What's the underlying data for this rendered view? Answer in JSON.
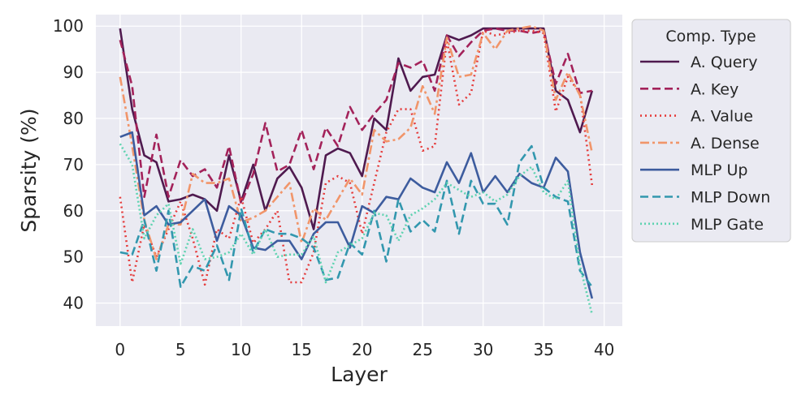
{
  "chart_data": {
    "type": "line",
    "xlabel": "Layer",
    "ylabel": "Sparsity (%)",
    "xlim": [
      -2,
      41.5
    ],
    "ylim": [
      35,
      102.5
    ],
    "xticks": [
      0,
      5,
      10,
      15,
      20,
      25,
      30,
      35,
      40
    ],
    "yticks": [
      40,
      50,
      60,
      70,
      80,
      90,
      100
    ],
    "grid": true,
    "background": "#eaeaf2",
    "legend": {
      "title": "Comp. Type",
      "placement": "outside right"
    },
    "x": [
      0,
      1,
      2,
      3,
      4,
      5,
      6,
      7,
      8,
      9,
      10,
      11,
      12,
      13,
      14,
      15,
      16,
      17,
      18,
      19,
      20,
      21,
      22,
      23,
      24,
      25,
      26,
      27,
      28,
      29,
      30,
      31,
      32,
      33,
      34,
      35,
      36,
      37,
      38,
      39
    ],
    "series": [
      {
        "name": "A. Query",
        "color": "#4f1a4f",
        "dash": "solid",
        "values": [
          99.5,
          82,
          72,
          70.5,
          62,
          62.5,
          63.5,
          62.5,
          60,
          72,
          62,
          70,
          60,
          67,
          69.5,
          65,
          56,
          72,
          73.5,
          72.5,
          67.5,
          80,
          77.5,
          93,
          86,
          89,
          89.5,
          98,
          97,
          98,
          99.5,
          99.5,
          99.5,
          99.5,
          99.5,
          99.5,
          86,
          84,
          77,
          86
        ]
      },
      {
        "name": "A. Key",
        "color": "#a3225a",
        "dash": "10,5",
        "values": [
          97,
          87,
          63,
          76.5,
          63,
          71,
          67.5,
          69,
          65,
          74,
          61.5,
          68,
          79,
          68.5,
          70,
          77.5,
          69,
          78,
          74,
          82.5,
          77.5,
          81,
          84,
          92,
          91,
          92.5,
          86,
          98,
          93.5,
          96.5,
          99,
          99.5,
          99,
          99,
          98.5,
          99,
          87.5,
          94,
          85.5,
          86
        ]
      },
      {
        "name": "A. Value",
        "color": "#e53c3c",
        "dash": "2,4",
        "values": [
          63,
          44.5,
          57,
          50,
          56,
          62,
          54,
          44,
          56,
          54,
          63,
          53,
          56,
          60,
          44.5,
          44.5,
          51,
          66,
          67.5,
          66,
          55,
          66,
          77,
          82,
          82,
          73,
          74,
          97,
          83,
          85.5,
          99,
          98,
          98.5,
          99,
          99,
          98.5,
          81.5,
          89,
          85.5,
          65.5
        ]
      },
      {
        "name": "A. Dense",
        "color": "#f1956a",
        "dash": "11,4,3,4",
        "values": [
          89,
          74,
          58,
          49.5,
          57,
          57,
          68,
          66,
          66,
          67,
          57.5,
          58.5,
          60,
          63,
          66,
          53,
          60.5,
          58,
          62.5,
          67,
          63.5,
          77.5,
          75,
          75.5,
          78,
          87,
          81,
          97.5,
          89,
          89.5,
          98.5,
          95,
          99,
          99.5,
          100,
          99,
          84,
          90,
          85,
          72.5
        ]
      },
      {
        "name": "MLP Up",
        "color": "#3d5c9e",
        "dash": "solid",
        "values": [
          76,
          77,
          59,
          61,
          57,
          57.5,
          60,
          62.5,
          53.5,
          61,
          59,
          52,
          51.5,
          53.5,
          53.5,
          49.5,
          55,
          57.5,
          57.5,
          52,
          61,
          59.5,
          63,
          62.5,
          67,
          65,
          64,
          70.5,
          66,
          72.5,
          64,
          67.5,
          64,
          68,
          66,
          65,
          71.5,
          68.5,
          51,
          41
        ]
      },
      {
        "name": "MLP Down",
        "color": "#3297ae",
        "dash": "10,5",
        "values": [
          51,
          50.5,
          58,
          47,
          60,
          43.5,
          48,
          47,
          52.5,
          45,
          60.5,
          51,
          56,
          55,
          55,
          54,
          52,
          45,
          45.5,
          53,
          50.5,
          60,
          49,
          62.5,
          55.5,
          58,
          55.5,
          66.5,
          55,
          66.5,
          61.5,
          61.5,
          57,
          70.5,
          74,
          65,
          63,
          62,
          47,
          43.5
        ]
      },
      {
        "name": "MLP Gate",
        "color": "#5ed3b0",
        "dash": "2,3",
        "values": [
          74.5,
          70,
          54,
          59,
          61.5,
          48.5,
          56,
          49.5,
          50,
          51,
          55,
          50.5,
          56,
          50,
          50.5,
          50.5,
          54.5,
          44.5,
          51,
          52.5,
          54,
          59.5,
          59,
          53.5,
          59,
          60.5,
          62.5,
          66,
          64.5,
          63,
          64,
          62,
          63.5,
          67.5,
          69.5,
          64,
          62.5,
          66.5,
          48,
          37.5
        ]
      }
    ]
  }
}
